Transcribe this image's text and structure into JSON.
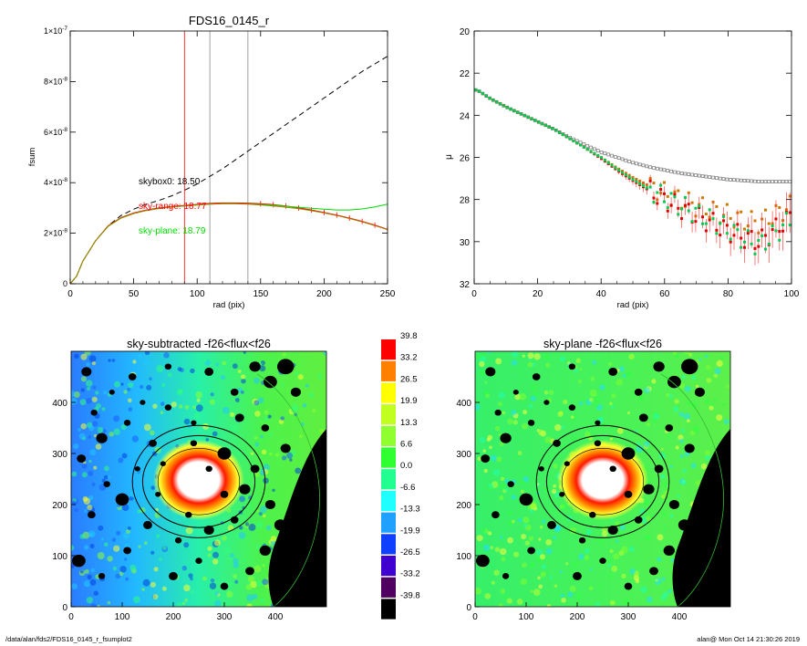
{
  "chart_data": [
    {
      "type": "line",
      "title": "FDS16_0145_r",
      "xlabel": "rad (pix)",
      "ylabel": "fsum",
      "xlim": [
        0,
        250
      ],
      "ylim": [
        0,
        1e-07
      ],
      "x_ticks": [
        "0",
        "50",
        "100",
        "150",
        "200",
        "250"
      ],
      "y_ticks": [
        {
          "mant": "0",
          "exp": ""
        },
        {
          "mant": "2×10",
          "exp": "-8"
        },
        {
          "mant": "4×10",
          "exp": "-8"
        },
        {
          "mant": "6×10",
          "exp": "-8"
        },
        {
          "mant": "8×10",
          "exp": "-8"
        },
        {
          "mant": "1×10",
          "exp": "-7"
        }
      ],
      "vlines": [
        {
          "x": 90,
          "color": "#ff0000"
        },
        {
          "x": 110,
          "color": "#888888"
        },
        {
          "x": 140,
          "color": "#888888"
        }
      ],
      "annotations": [
        {
          "text": "skybox0: 18.50",
          "color": "#000000"
        },
        {
          "text": "sky-range: 18.77",
          "color": "#ff0000"
        },
        {
          "text": "sky-plane: 18.79",
          "color": "#00dd00"
        }
      ],
      "series": [
        {
          "color": "#000000",
          "style": "dashed",
          "x": [
            0,
            5,
            10,
            20,
            30,
            40,
            50,
            60,
            70,
            80,
            90,
            100,
            110,
            120,
            130,
            140,
            150,
            160,
            170,
            180,
            190,
            200,
            210,
            220,
            230,
            240,
            250
          ],
          "y": [
            0,
            3e-09,
            9e-09,
            1.7e-08,
            2.3e-08,
            2.7e-08,
            2.95e-08,
            3.15e-08,
            3.3e-08,
            3.48e-08,
            3.7e-08,
            3.95e-08,
            4.25e-08,
            4.55e-08,
            4.9e-08,
            5.25e-08,
            5.6e-08,
            5.95e-08,
            6.3e-08,
            6.65e-08,
            7e-08,
            7.35e-08,
            7.7e-08,
            8.05e-08,
            8.4e-08,
            8.7e-08,
            9e-08
          ]
        },
        {
          "color": "#ff0000",
          "style": "solid",
          "x": [
            0,
            5,
            10,
            20,
            30,
            40,
            50,
            60,
            70,
            80,
            90,
            100,
            110,
            120,
            130,
            140,
            150,
            160,
            170,
            180,
            190,
            200,
            210,
            220,
            230,
            240,
            250
          ],
          "y": [
            0,
            3e-09,
            9e-09,
            1.7e-08,
            2.3e-08,
            2.62e-08,
            2.8e-08,
            2.92e-08,
            3e-08,
            3.06e-08,
            3.1e-08,
            3.14e-08,
            3.18e-08,
            3.2e-08,
            3.2e-08,
            3.19e-08,
            3.17e-08,
            3.13e-08,
            3.08e-08,
            3e-08,
            2.92e-08,
            2.82e-08,
            2.72e-08,
            2.6e-08,
            2.47e-08,
            2.32e-08,
            2.15e-08
          ]
        },
        {
          "color": "#00dd00",
          "style": "solid",
          "x": [
            0,
            5,
            10,
            20,
            30,
            40,
            50,
            60,
            70,
            80,
            90,
            100,
            110,
            120,
            130,
            140,
            150,
            160,
            170,
            180,
            190,
            200,
            210,
            220,
            230,
            240,
            250
          ],
          "y": [
            0,
            3e-09,
            9e-09,
            1.7e-08,
            2.28e-08,
            2.6e-08,
            2.78e-08,
            2.9e-08,
            2.98e-08,
            3.04e-08,
            3.08e-08,
            3.12e-08,
            3.15e-08,
            3.17e-08,
            3.17e-08,
            3.16e-08,
            3.14e-08,
            3.11e-08,
            3.07e-08,
            3.03e-08,
            2.99e-08,
            2.95e-08,
            2.92e-08,
            2.92e-08,
            2.96e-08,
            3.04e-08,
            3.15e-08
          ]
        },
        {
          "color": "#a08000",
          "style": "solid",
          "x": [
            0,
            5,
            10,
            20,
            30,
            40,
            50,
            60,
            70,
            80,
            90,
            100,
            110,
            120,
            130,
            140,
            150,
            160,
            170,
            180,
            190,
            200,
            210,
            220,
            230,
            240,
            250
          ],
          "y": [
            0,
            3e-09,
            9e-09,
            1.7e-08,
            2.28e-08,
            2.6e-08,
            2.78e-08,
            2.9e-08,
            2.98e-08,
            3.04e-08,
            3.08e-08,
            3.12e-08,
            3.15e-08,
            3.17e-08,
            3.17e-08,
            3.15e-08,
            3.12e-08,
            3.08e-08,
            3.03e-08,
            2.97e-08,
            2.89e-08,
            2.8e-08,
            2.7e-08,
            2.58e-08,
            2.45e-08,
            2.3e-08,
            2.14e-08
          ]
        }
      ]
    },
    {
      "type": "scatter",
      "xlabel": "rad (pix)",
      "ylabel": "μ",
      "xlim": [
        0,
        100
      ],
      "ylim": [
        32,
        20
      ],
      "x_ticks": [
        "0",
        "20",
        "40",
        "60",
        "80",
        "100"
      ],
      "y_ticks": [
        "20",
        "22",
        "24",
        "26",
        "28",
        "30",
        "32"
      ],
      "series": [
        {
          "color": "#777777",
          "marker": "open-square",
          "x": [
            1,
            5,
            10,
            15,
            20,
            25,
            30,
            35,
            40,
            45,
            50,
            55,
            60,
            65,
            70,
            75,
            80,
            85,
            90,
            95,
            100
          ],
          "y": [
            22.8,
            23.2,
            23.6,
            23.95,
            24.3,
            24.65,
            25.05,
            25.4,
            25.75,
            26.0,
            26.25,
            26.45,
            26.6,
            26.75,
            26.85,
            26.95,
            27.05,
            27.1,
            27.15,
            27.15,
            27.15
          ]
        },
        {
          "color": "#cc7700",
          "marker": "filled-square",
          "x": [
            1,
            5,
            10,
            15,
            20,
            25,
            30,
            35,
            40,
            45,
            50,
            55,
            60,
            65,
            70,
            75,
            80,
            85,
            90,
            95,
            100
          ],
          "y": [
            22.8,
            23.2,
            23.6,
            23.95,
            24.3,
            24.65,
            25.1,
            25.55,
            26.0,
            26.5,
            26.95,
            27.35,
            27.7,
            28.0,
            28.3,
            28.5,
            28.75,
            29.0,
            29.1,
            28.7,
            28.3
          ]
        },
        {
          "color": "#dd0000",
          "marker": "filled-square",
          "error_bars": true,
          "x": [
            1,
            5,
            10,
            15,
            20,
            25,
            30,
            35,
            40,
            45,
            50,
            55,
            60,
            65,
            70,
            75,
            80,
            85,
            90,
            95,
            100
          ],
          "y": [
            22.8,
            23.2,
            23.6,
            23.95,
            24.3,
            24.65,
            25.1,
            25.55,
            26.05,
            26.6,
            27.1,
            27.55,
            28.0,
            28.4,
            28.8,
            29.1,
            29.5,
            29.8,
            30.0,
            29.4,
            28.8
          ]
        },
        {
          "color": "#00cc55",
          "marker": "filled-square",
          "x": [
            1,
            5,
            10,
            15,
            20,
            25,
            30,
            35,
            40,
            45,
            50,
            55,
            60,
            65,
            70,
            75,
            80,
            85,
            90,
            95,
            100
          ],
          "y": [
            22.8,
            23.2,
            23.6,
            23.95,
            24.3,
            24.65,
            25.1,
            25.55,
            26.0,
            26.55,
            27.05,
            27.5,
            27.9,
            28.3,
            28.65,
            29.0,
            29.4,
            29.9,
            30.2,
            29.6,
            28.9
          ]
        }
      ]
    },
    {
      "type": "heatmap",
      "title": "sky-subtracted -f26<flux<f26",
      "x_ticks": [
        "0",
        "100",
        "200",
        "300",
        "400"
      ],
      "y_ticks": [
        "0",
        "100",
        "200",
        "300",
        "400"
      ],
      "xlim": [
        0,
        500
      ],
      "ylim": [
        0,
        500
      ],
      "center": [
        250,
        245
      ],
      "ellipse_radii": [
        [
          130,
          110
        ],
        [
          110,
          90
        ],
        [
          80,
          65
        ]
      ],
      "background_gradient": "blue on the left to green on the right"
    },
    {
      "type": "heatmap",
      "title": "sky-plane -f26<flux<f26",
      "x_ticks": [
        "0",
        "100",
        "200",
        "300",
        "400"
      ],
      "y_ticks": [
        "0",
        "100",
        "200",
        "300",
        "400"
      ],
      "xlim": [
        0,
        500
      ],
      "ylim": [
        0,
        500
      ],
      "center": [
        250,
        245
      ],
      "ellipse_radii": [
        [
          130,
          110
        ],
        [
          110,
          90
        ],
        [
          80,
          65
        ]
      ],
      "background_gradient": "uniform green"
    },
    {
      "type": "colorbar",
      "labels": [
        "39.8",
        "33.2",
        "26.5",
        "19.9",
        "13.3",
        "6.6",
        "0.0",
        "-6.6",
        "-13.3",
        "-19.9",
        "-26.5",
        "-33.2",
        "-39.8"
      ],
      "colors": [
        "#ff0000",
        "#ff8000",
        "#ffff00",
        "#c0ff20",
        "#90ff30",
        "#30ff30",
        "#20ff90",
        "#20ffff",
        "#20a0ff",
        "#1040ff",
        "#4000d0",
        "#500060",
        "#000000"
      ]
    }
  ],
  "footer": {
    "left": "/data/alan/fds2/FDS16_0145_r_fsumplot2",
    "right": "alan@  Mon Oct 14 21:30:26 2019"
  }
}
